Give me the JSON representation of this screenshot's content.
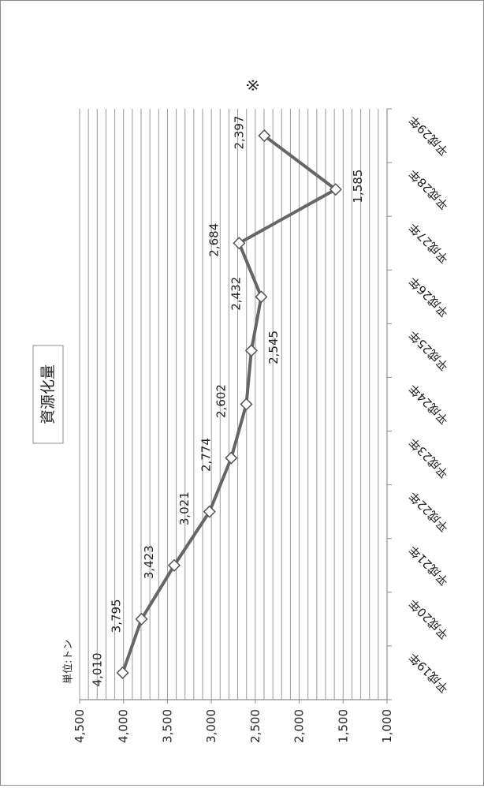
{
  "chart_data": {
    "type": "line",
    "title": "資源化量",
    "unit_label": "単位:トン",
    "categories": [
      "平成19年",
      "平成20年",
      "平成21年",
      "平成22年",
      "平成23年",
      "平成24年",
      "平成25年",
      "平成26年",
      "平成27年",
      "平成28年",
      "平成29年"
    ],
    "values": [
      4010,
      3795,
      3423,
      3021,
      2774,
      2602,
      2545,
      2432,
      2684,
      1585,
      2397
    ],
    "data_labels": [
      "4,010",
      "3,795",
      "3,423",
      "3,021",
      "2,774",
      "2,602",
      "2,545",
      "2,432",
      "2,684",
      "1,585",
      "2,397"
    ],
    "annotation": "※",
    "ylim": [
      1000,
      4500
    ],
    "y_ticks": [
      4500,
      4000,
      3500,
      3000,
      2500,
      2000,
      1500,
      1000
    ],
    "y_tick_labels": [
      "4,500",
      "4,000",
      "3,500",
      "3,000",
      "2,500",
      "2,000",
      "1,500",
      "1,000"
    ],
    "grid": true,
    "orientation": "rotated-90",
    "colors": {
      "line": "#666666",
      "marker_fill": "#ffffff",
      "marker_stroke": "#555555",
      "grid": "#9a9a9a",
      "axis": "#8c8c8c"
    }
  }
}
